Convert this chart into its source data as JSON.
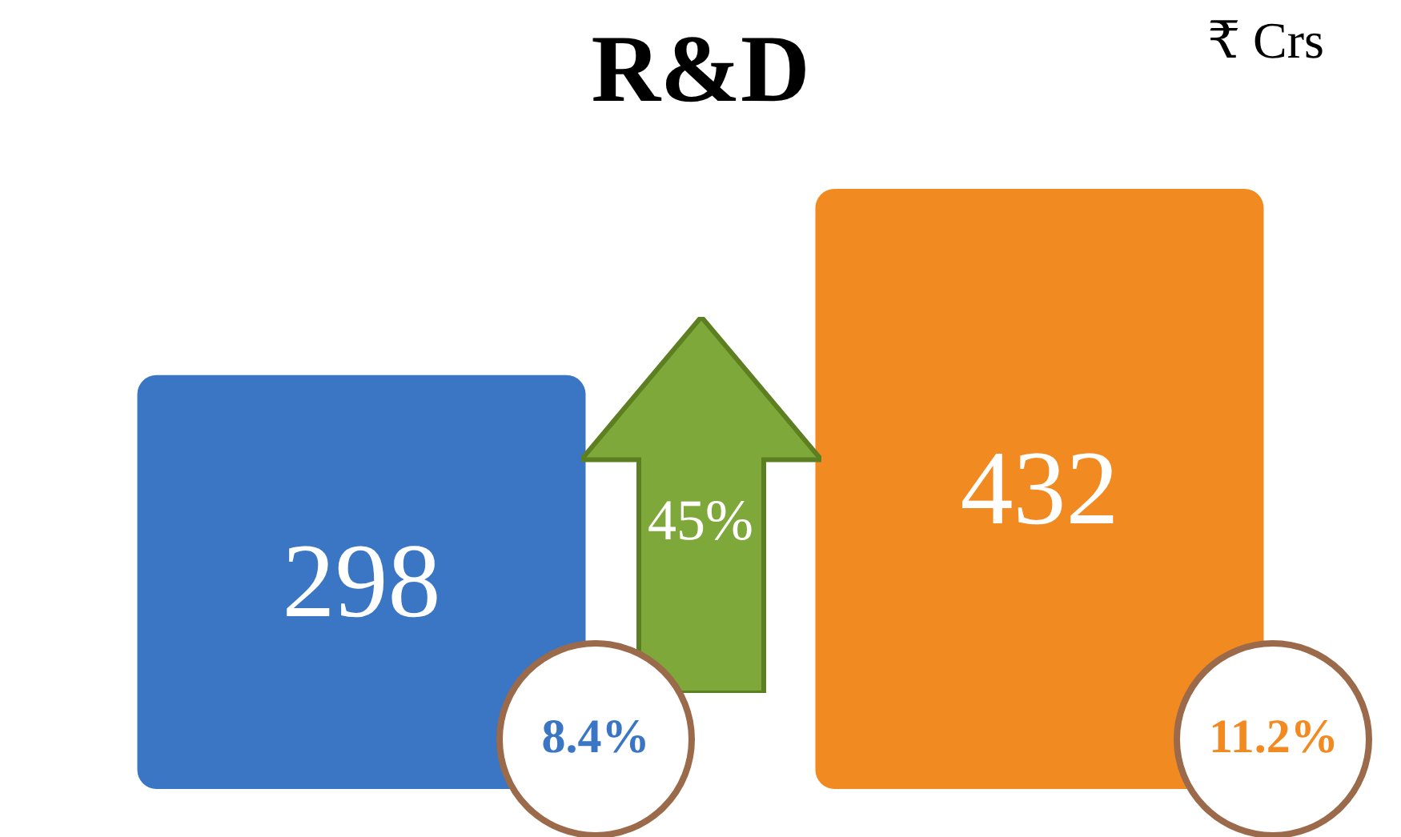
{
  "chart_data": {
    "type": "bar",
    "title": "R&D",
    "categories": [
      null,
      null
    ],
    "values": [
      298,
      432
    ],
    "colors": [
      "#3b76c5",
      "#f28a22"
    ],
    "data_labels": true,
    "grid": false,
    "tick_labels": false,
    "annotations": [
      "₹ Crs",
      "45%",
      "8.4%",
      "11.2%"
    ]
  }
}
